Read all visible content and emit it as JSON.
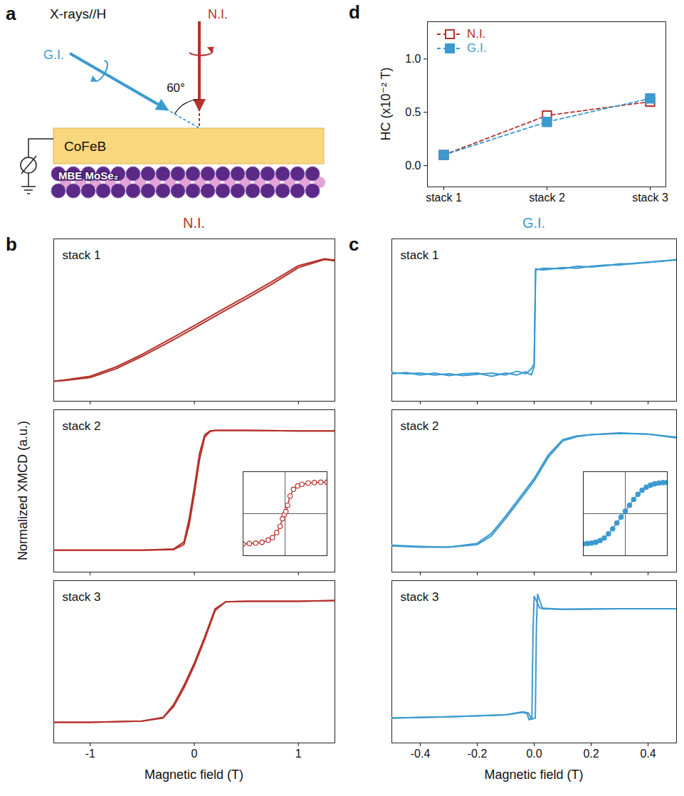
{
  "diagram": {
    "panel": "a",
    "angle": 60,
    "labels": {
      "beam": "X-rays//H",
      "normal": "N.I.",
      "grazing": "G.I.",
      "angle": "60°",
      "film": "CoFeB",
      "substrate": "MBE MoSe₂"
    },
    "colors": {
      "normal": "#b5312b",
      "grazing": "#3b9ad0",
      "film": "#f9d77e",
      "substrate": "#5b2a86"
    }
  },
  "chart_data": [
    {
      "type": "line",
      "panel": "b",
      "title": "N.I.",
      "xlabel": "Magnetic field (T)",
      "ylabel": "Normalized XMCD (a.u.)",
      "color": "#b5312b",
      "xlim": [
        -1.35,
        1.35
      ],
      "xticks": [
        -1,
        0,
        1
      ],
      "ylim": [
        -1.3,
        1.3
      ],
      "panels": [
        {
          "label": "stack 1",
          "tick_labels": false,
          "series": [
            {
              "x": [
                -1.35,
                -1.25,
                -1,
                -0.75,
                -0.5,
                -0.25,
                0,
                0.25,
                0.5,
                0.75,
                1,
                1.25,
                1.35
              ],
              "values": [
                -0.98,
                -0.97,
                -0.92,
                -0.78,
                -0.58,
                -0.36,
                -0.13,
                0.11,
                0.34,
                0.58,
                0.84,
                0.97,
                0.95
              ]
            },
            {
              "x": [
                -1.35,
                -1.25,
                -1,
                -0.75,
                -0.5,
                -0.25,
                0,
                0.25,
                0.5,
                0.75,
                1,
                1.25,
                1.35
              ],
              "values": [
                -0.98,
                -0.96,
                -0.9,
                -0.75,
                -0.55,
                -0.32,
                -0.09,
                0.15,
                0.38,
                0.62,
                0.87,
                0.98,
                0.96
              ]
            }
          ]
        },
        {
          "label": "stack 2",
          "tick_labels": false,
          "series": [
            {
              "x": [
                -1.35,
                -1,
                -0.5,
                -0.2,
                -0.1,
                -0.05,
                0,
                0.05,
                0.1,
                0.15,
                0.2,
                0.5,
                1,
                1.35
              ],
              "values": [
                -0.95,
                -0.95,
                -0.95,
                -0.94,
                -0.86,
                -0.55,
                -0.05,
                0.5,
                0.86,
                0.95,
                0.97,
                0.97,
                0.96,
                0.96
              ]
            },
            {
              "x": [
                -1.35,
                -1,
                -0.5,
                -0.2,
                -0.1,
                -0.05,
                0,
                0.05,
                0.1,
                0.15,
                0.2,
                0.5,
                1,
                1.35
              ],
              "values": [
                -0.95,
                -0.95,
                -0.95,
                -0.93,
                -0.82,
                -0.45,
                0.05,
                0.6,
                0.9,
                0.96,
                0.97,
                0.97,
                0.96,
                0.96
              ]
            }
          ],
          "inset": {
            "marker": "open circle",
            "xlim": [
              -1,
              1
            ],
            "ylim": [
              -1,
              1
            ],
            "origin": [
              0,
              0
            ],
            "x": [
              -1,
              -0.85,
              -0.7,
              -0.55,
              -0.4,
              -0.3,
              -0.2,
              -0.12,
              -0.06,
              -0.02,
              0.02,
              0.06,
              0.12,
              0.2,
              0.3,
              0.4,
              0.55,
              0.7,
              0.85,
              1
            ],
            "values": [
              -0.72,
              -0.71,
              -0.7,
              -0.68,
              -0.63,
              -0.57,
              -0.45,
              -0.3,
              -0.12,
              -0.02,
              0.05,
              0.2,
              0.42,
              0.58,
              0.66,
              0.7,
              0.73,
              0.74,
              0.75,
              0.75
            ]
          }
        },
        {
          "label": "stack 3",
          "tick_labels": "x",
          "series": [
            {
              "x": [
                -1.35,
                -1,
                -0.5,
                -0.3,
                -0.2,
                -0.1,
                0,
                0.1,
                0.2,
                0.3,
                0.5,
                1,
                1.35
              ],
              "values": [
                -0.97,
                -0.97,
                -0.95,
                -0.9,
                -0.72,
                -0.42,
                -0.06,
                0.36,
                0.82,
                0.96,
                0.97,
                0.97,
                0.98
              ]
            },
            {
              "x": [
                -1.35,
                -1,
                -0.5,
                -0.3,
                -0.2,
                -0.1,
                0,
                0.1,
                0.2,
                0.3,
                0.5,
                1,
                1.35
              ],
              "values": [
                -0.97,
                -0.97,
                -0.95,
                -0.89,
                -0.69,
                -0.38,
                -0.02,
                0.4,
                0.85,
                0.96,
                0.97,
                0.97,
                0.98
              ]
            }
          ]
        }
      ]
    },
    {
      "type": "line",
      "panel": "c",
      "title": "G.I.",
      "xlabel": "Magnetic field (T)",
      "color": "#3b9ad0",
      "xlim": [
        -0.5,
        0.5
      ],
      "xticks": [
        -0.4,
        -0.2,
        {
          "value": 0,
          "label": "0.0"
        },
        0.2,
        0.4
      ],
      "ylim": [
        -1.3,
        1.3
      ],
      "panels": [
        {
          "label": "stack 1",
          "tick_labels": false,
          "series": [
            {
              "x": [
                -0.5,
                -0.45,
                -0.4,
                -0.35,
                -0.3,
                -0.25,
                -0.2,
                -0.15,
                -0.1,
                -0.06,
                -0.03,
                -0.01,
                0,
                0.005,
                0.03,
                0.1,
                0.15,
                0.2,
                0.25,
                0.3,
                0.35,
                0.4,
                0.45,
                0.5
              ],
              "values": [
                -0.84,
                -0.86,
                -0.85,
                -0.88,
                -0.86,
                -0.89,
                -0.87,
                -0.85,
                -0.88,
                -0.82,
                -0.86,
                -0.78,
                -0.7,
                0.82,
                0.8,
                0.84,
                0.83,
                0.86,
                0.88,
                0.88,
                0.91,
                0.92,
                0.95,
                0.96
              ]
            },
            {
              "x": [
                -0.5,
                -0.45,
                -0.4,
                -0.35,
                -0.3,
                -0.25,
                -0.2,
                -0.15,
                -0.1,
                -0.06,
                -0.03,
                -0.01,
                0,
                0.005,
                0.03,
                0.1,
                0.15,
                0.2,
                0.25,
                0.3,
                0.35,
                0.4,
                0.45,
                0.5
              ],
              "values": [
                -0.86,
                -0.84,
                -0.88,
                -0.85,
                -0.89,
                -0.86,
                -0.85,
                -0.9,
                -0.85,
                -0.88,
                -0.83,
                -0.88,
                -0.75,
                0.8,
                0.83,
                0.82,
                0.86,
                0.85,
                0.87,
                0.9,
                0.9,
                0.93,
                0.94,
                0.97
              ]
            }
          ]
        },
        {
          "label": "stack 2",
          "tick_labels": false,
          "series": [
            {
              "x": [
                -0.5,
                -0.4,
                -0.3,
                -0.2,
                -0.15,
                -0.1,
                -0.05,
                0,
                0.05,
                0.1,
                0.15,
                0.2,
                0.3,
                0.4,
                0.5
              ],
              "values": [
                -0.88,
                -0.9,
                -0.9,
                -0.86,
                -0.72,
                -0.44,
                -0.14,
                0.16,
                0.54,
                0.8,
                0.87,
                0.9,
                0.93,
                0.91,
                0.86
              ]
            },
            {
              "x": [
                -0.5,
                -0.4,
                -0.3,
                -0.2,
                -0.15,
                -0.1,
                -0.05,
                0,
                0.05,
                0.1,
                0.15,
                0.2,
                0.3,
                0.4,
                0.5
              ],
              "values": [
                -0.87,
                -0.89,
                -0.9,
                -0.84,
                -0.68,
                -0.4,
                -0.1,
                0.2,
                0.58,
                0.82,
                0.88,
                0.9,
                0.92,
                0.91,
                0.85
              ]
            }
          ],
          "inset": {
            "marker": "circle",
            "xlim": [
              -1,
              1
            ],
            "ylim": [
              -1,
              1
            ],
            "origin": [
              0,
              0
            ],
            "x": [
              -1,
              -0.9,
              -0.8,
              -0.7,
              -0.6,
              -0.5,
              -0.4,
              -0.3,
              -0.2,
              -0.1,
              0,
              0.1,
              0.2,
              0.3,
              0.4,
              0.5,
              0.6,
              0.7,
              0.8,
              0.9,
              1
            ],
            "values": [
              -0.72,
              -0.71,
              -0.7,
              -0.68,
              -0.64,
              -0.58,
              -0.48,
              -0.36,
              -0.22,
              -0.08,
              0.06,
              0.2,
              0.34,
              0.46,
              0.56,
              0.63,
              0.68,
              0.71,
              0.73,
              0.74,
              0.74
            ]
          }
        },
        {
          "label": "stack 3",
          "tick_labels": "x",
          "series": [
            {
              "x": [
                -0.5,
                -0.3,
                -0.1,
                -0.04,
                -0.02,
                -0.01,
                0.004,
                0.008,
                0.012,
                0.03,
                0.1,
                0.3,
                0.5
              ],
              "values": [
                -0.9,
                -0.88,
                -0.85,
                -0.8,
                -0.82,
                -0.92,
                -0.9,
                0.6,
                1.08,
                0.85,
                0.84,
                0.85,
                0.85
              ]
            },
            {
              "x": [
                -0.5,
                -0.3,
                -0.1,
                -0.04,
                -0.025,
                -0.018,
                -0.008,
                -0.004,
                0,
                0.02,
                0.1,
                0.3,
                0.5
              ],
              "values": [
                -0.9,
                -0.88,
                -0.85,
                -0.81,
                -0.83,
                -0.93,
                -0.9,
                0.5,
                1.05,
                0.86,
                0.84,
                0.85,
                0.85
              ]
            }
          ]
        }
      ]
    },
    {
      "type": "line",
      "panel": "d",
      "ylabel": "HC (x10⁻² T)",
      "categories": [
        "stack 1",
        "stack 2",
        "stack 3"
      ],
      "ylim": [
        -0.2,
        1.35
      ],
      "yticks": [
        {
          "value": 0,
          "label": "0.0"
        },
        {
          "value": 0.5,
          "label": "0.5"
        },
        {
          "value": 1,
          "label": "1.0"
        }
      ],
      "legend": "top-left",
      "series": [
        {
          "name": "N.I.",
          "color": "#b5312b",
          "marker": "open square",
          "line_style": "dashed",
          "values": [
            0.1,
            0.47,
            0.6
          ]
        },
        {
          "name": "G.I.",
          "color": "#3b9ad0",
          "marker": "square",
          "line_style": "dashed",
          "values": [
            0.1,
            0.41,
            0.63
          ]
        }
      ]
    }
  ]
}
